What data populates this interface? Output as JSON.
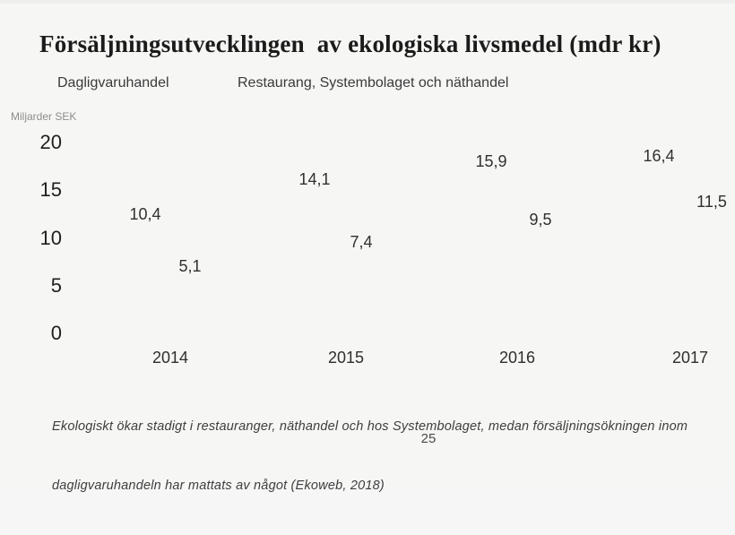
{
  "title": "Försäljningsutvecklingen  av ekologiska livsmedel (mdr kr)",
  "chart_data": {
    "type": "bar",
    "title": "Försäljningsutvecklingen  av ekologiska livsmedel (mdr kr)",
    "unit_label": "Miljarder SEK",
    "categories": [
      "2014",
      "2015",
      "2016",
      "2017"
    ],
    "series": [
      {
        "name": "Dagligvaruhandel",
        "values": [
          10.4,
          14.1,
          15.9,
          16.4
        ],
        "labels": [
          "10,4",
          "14,1",
          "15,9",
          "16,4"
        ]
      },
      {
        "name": "Restaurang, Systembolaget och näthandel",
        "values": [
          5.1,
          7.4,
          9.5,
          11.5
        ],
        "labels": [
          "5,1",
          "7,4",
          "9,5",
          "11,5"
        ]
      }
    ],
    "ylabel": "Miljarder SEK",
    "xlabel": "",
    "ylim": [
      0,
      20
    ],
    "yticks": [
      "20",
      "15",
      "10",
      "5",
      "0"
    ],
    "grid": false,
    "legend_position": "top",
    "bars_rendered": false
  },
  "footer": {
    "lines": [
      "Ekologiskt ökar stadigt i restauranger, näthandel och hos Systembolaget, medan försäljningsökningen inom",
      "dagligvaruhandeln har mattats av något (Ekoweb, 2018)"
    ]
  },
  "page_number": "25",
  "colors": {
    "background": "#f6f6f5",
    "title_text": "#1b1b1b",
    "axis_text": "#1e1e1e",
    "value_text": "#303030",
    "muted_text": "#8d8d8d",
    "caption_text": "#3e3e3e"
  }
}
